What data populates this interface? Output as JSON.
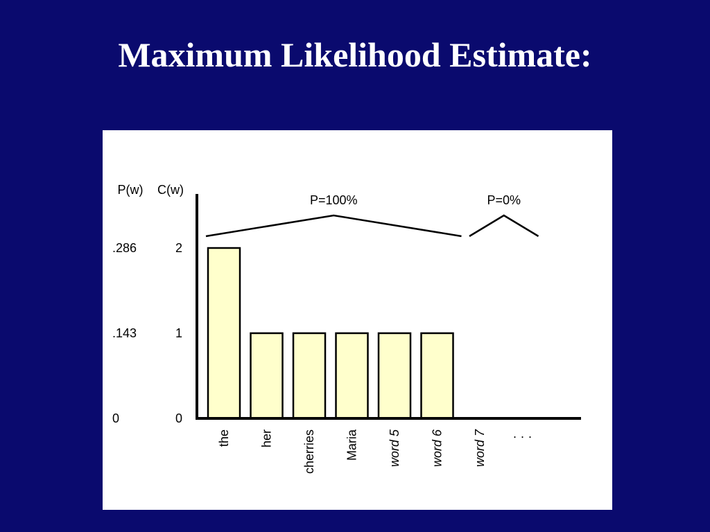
{
  "slide": {
    "title": "Maximum Likelihood Estimate:",
    "background_color": "#0a0a6e",
    "title_color": "#ffffff"
  },
  "chart_data": {
    "type": "bar",
    "categories": [
      "the",
      "her",
      "cherries",
      "Maria",
      "word 5",
      "word 6",
      "word 7",
      "· · ·"
    ],
    "italic_categories": [
      "word 5",
      "word 6",
      "word 7"
    ],
    "values": [
      2,
      1,
      1,
      1,
      1,
      1,
      0,
      0
    ],
    "bar_fill": "#ffffcc",
    "bar_stroke": "#000000",
    "y_axes": [
      {
        "label": "P(w)",
        "ticks": [
          "0",
          ".143",
          ".286"
        ]
      },
      {
        "label": "C(w)",
        "ticks": [
          "0",
          "1",
          "2"
        ]
      }
    ],
    "ylim": [
      0,
      2
    ],
    "grid": false,
    "annotations": [
      {
        "text": "P=100%",
        "spans": [
          "the",
          "word 6"
        ]
      },
      {
        "text": "P=0%",
        "spans": [
          "word 7",
          "· · ·"
        ]
      }
    ]
  }
}
